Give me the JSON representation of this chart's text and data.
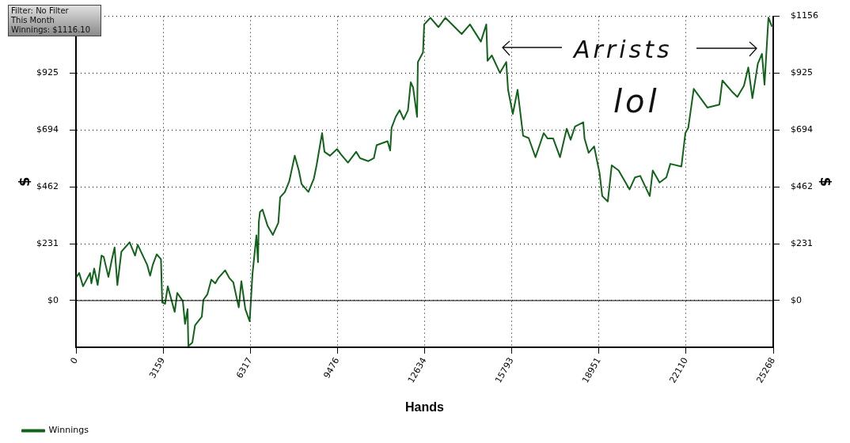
{
  "chart_data": {
    "type": "line",
    "xlabel": "Hands",
    "ylabel": "$",
    "y2label": "$",
    "annotations": [
      "Filter: No Filter",
      "This Month",
      "Winnings: $1116.10",
      "Arrists",
      "lol"
    ],
    "xlim": [
      0,
      25268
    ],
    "xticks": [
      0,
      3159,
      6317,
      9476,
      12634,
      15793,
      18951,
      22110,
      25268
    ],
    "ylim": [
      -190,
      1156
    ],
    "yticks": [
      {
        "value": 0,
        "label": "$0"
      },
      {
        "value": 231.2,
        "label": "$231"
      },
      {
        "value": 462.4,
        "label": "$462"
      },
      {
        "value": 693.6,
        "label": "$694"
      },
      {
        "value": 924.8,
        "label": "$925"
      },
      {
        "value": 1156,
        "label": null
      }
    ],
    "y2lim": [
      -190,
      1156
    ],
    "y2ticks": [
      {
        "value": 0,
        "label": "$0"
      },
      {
        "value": 231.2,
        "label": "$231"
      },
      {
        "value": 462.4,
        "label": "$462"
      },
      {
        "value": 693.6,
        "label": "$694"
      },
      {
        "value": 924.8,
        "label": "$925"
      },
      {
        "value": 1156,
        "label": "$1156"
      }
    ],
    "grid": true,
    "line_style": "solid",
    "marker": "none",
    "legend": "bottom left",
    "ref_lines": [
      {
        "axis": "y",
        "value": 0,
        "color": "#000000"
      }
    ],
    "series": [
      {
        "name": "Winnings",
        "color": "#11631a",
        "x": [
          17,
          115,
          258,
          510,
          559,
          660,
          786,
          926,
          1004,
          1176,
          1302,
          1400,
          1500,
          1646,
          1945,
          2142,
          2237,
          2581,
          2687,
          2782,
          2925,
          3080,
          3126,
          3229,
          3327,
          3576,
          3671,
          3872,
          3952,
          4044,
          4073,
          4216,
          4316,
          4560,
          4617,
          4761,
          4904,
          5048,
          5162,
          5406,
          5555,
          5702,
          5899,
          5994,
          6138,
          6295,
          6396,
          6539,
          6596,
          6625,
          6668,
          6760,
          6941,
          7136,
          7333,
          7399,
          7572,
          7729,
          7927,
          8076,
          8174,
          8423,
          8621,
          8719,
          8919,
          9006,
          9206,
          9461,
          9608,
          9857,
          10153,
          10296,
          10597,
          10795,
          10896,
          11291,
          11386,
          11438,
          11587,
          11730,
          11874,
          12031,
          12132,
          12218,
          12361,
          12390,
          12576,
          12619,
          12843,
          13135,
          13388,
          13978,
          14277,
          14673,
          14870,
          14914,
          15069,
          15364,
          15593,
          15659,
          15831,
          16003,
          16204,
          16405,
          16652,
          16950,
          17093,
          17294,
          17541,
          17782,
          17925,
          18086,
          18384,
          18430,
          18579,
          18777,
          18975,
          19072,
          19273,
          19416,
          19666,
          20062,
          20260,
          20449,
          20793,
          20902,
          21149,
          21395,
          21539,
          21940,
          22084,
          22190,
          22388,
          22881,
          23317,
          23426,
          23770,
          23968,
          24206,
          24364,
          24513,
          24711,
          24860,
          24952,
          25095,
          25210,
          25268
        ],
        "values": [
          96,
          112,
          58,
          112,
          70,
          130,
          63,
          183,
          178,
          96,
          168,
          216,
          63,
          199,
          237,
          183,
          227,
          145,
          101,
          145,
          188,
          168,
          -8,
          -13,
          58,
          -46,
          31,
          -2,
          -95,
          -35,
          -185,
          -171,
          -100,
          -66,
          3,
          25,
          85,
          70,
          92,
          123,
          92,
          74,
          -28,
          79,
          -35,
          -84,
          107,
          265,
          156,
          319,
          360,
          370,
          305,
          267,
          316,
          420,
          442,
          485,
          589,
          529,
          474,
          442,
          496,
          550,
          681,
          605,
          589,
          616,
          594,
          561,
          605,
          579,
          567,
          579,
          632,
          648,
          610,
          703,
          747,
          774,
          737,
          774,
          888,
          866,
          747,
          970,
          1009,
          1123,
          1150,
          1112,
          1150,
          1084,
          1123,
          1053,
          1123,
          975,
          997,
          926,
          970,
          857,
          759,
          857,
          670,
          661,
          583,
          681,
          659,
          659,
          583,
          699,
          654,
          708,
          725,
          659,
          601,
          627,
          518,
          425,
          403,
          550,
          529,
          452,
          501,
          507,
          425,
          529,
          480,
          501,
          556,
          545,
          681,
          703,
          861,
          785,
          797,
          895,
          850,
          828,
          873,
          948,
          823,
          964,
          1003,
          878,
          1151,
          1117,
          1116
        ]
      }
    ]
  }
}
